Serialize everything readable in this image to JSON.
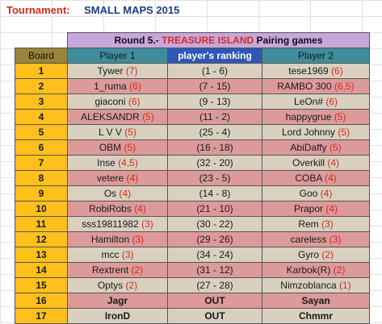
{
  "tournament": {
    "label": "Tournament:",
    "name": "SMALL MAPS 2015"
  },
  "banner": {
    "prefix": "Round 5.- ",
    "highlight": "TREASURE ISLAND",
    "suffix": " Pairing games"
  },
  "headers": {
    "board": "Board",
    "player1": "Player 1",
    "ranking": "player's ranking",
    "player2": "Player 2"
  },
  "rows": [
    {
      "board": "1",
      "p1": "Tywer",
      "p1s": "(7)",
      "rank": "(1 - 6)",
      "p2": "tese1969",
      "p2s": "(6)"
    },
    {
      "board": "2",
      "p1": "1_ruma",
      "p1s": "(6)",
      "rank": "(7 - 15)",
      "p2": "RAMBO 300",
      "p2s": "(6,5)"
    },
    {
      "board": "3",
      "p1": "giaconi",
      "p1s": "(6)",
      "rank": "(9 - 13)",
      "p2": "LeOn#",
      "p2s": "(6)"
    },
    {
      "board": "4",
      "p1": "ALEKSANDR",
      "p1s": "(5)",
      "rank": "(11 - 2)",
      "p2": "happygrue",
      "p2s": "(5)"
    },
    {
      "board": "5",
      "p1": "L V V",
      "p1s": "(5)",
      "rank": "(25 - 4)",
      "p2": "Lord Johnny",
      "p2s": "(5)"
    },
    {
      "board": "6",
      "p1": "OBM",
      "p1s": "(5)",
      "rank": "(16 - 18)",
      "p2": "AbiDaffy",
      "p2s": "(5)"
    },
    {
      "board": "7",
      "p1": "Inse",
      "p1s": "(4,5)",
      "rank": "(32 - 20)",
      "p2": "Overkill",
      "p2s": "(4)"
    },
    {
      "board": "8",
      "p1": "vetere",
      "p1s": "(4)",
      "rank": "(23 - 5)",
      "p2": "COBA",
      "p2s": "(4)"
    },
    {
      "board": "9",
      "p1": "Os",
      "p1s": "(4)",
      "rank": "(14 - 8)",
      "p2": "Goo",
      "p2s": "(4)"
    },
    {
      "board": "10",
      "p1": "RobiRobs",
      "p1s": "(4)",
      "rank": "(21 - 10)",
      "p2": "Prapor",
      "p2s": "(4)"
    },
    {
      "board": "11",
      "p1": "sss19811982",
      "p1s": "(3)",
      "rank": "(30 - 22)",
      "p2": "Rem",
      "p2s": "(3)"
    },
    {
      "board": "12",
      "p1": "Hamilton",
      "p1s": "(3)",
      "rank": "(29 - 26)",
      "p2": "careless",
      "p2s": "(3)"
    },
    {
      "board": "13",
      "p1": "mcc",
      "p1s": "(3)",
      "rank": "(34 - 24)",
      "p2": "Gyro",
      "p2s": "(2)"
    },
    {
      "board": "14",
      "p1": "Rextrent",
      "p1s": "(2)",
      "rank": "(31 - 12)",
      "p2": "Karbok(R)",
      "p2s": "(2)"
    },
    {
      "board": "15",
      "p1": "Optys",
      "p1s": "(2)",
      "rank": "(27 - 28)",
      "p2": "Nimzoblanca",
      "p2s": "(1)"
    },
    {
      "board": "16",
      "p1": "Jagr",
      "p1s": "",
      "rank": "OUT",
      "p2": "Sayan",
      "p2s": "",
      "out": true
    },
    {
      "board": "17",
      "p1": "IronD",
      "p1s": "",
      "rank": "OUT",
      "p2": "Chmmr",
      "p2s": "",
      "out": true
    }
  ],
  "colors": {
    "accent_red": "#d42b1e",
    "board_cell": "#ffc01e",
    "row_even": "#d9d0bf",
    "row_odd": "#dd9a9a",
    "banner": "#c8a7dc",
    "header": "#3f8c9c",
    "ranking_header": "#2f57b8"
  }
}
